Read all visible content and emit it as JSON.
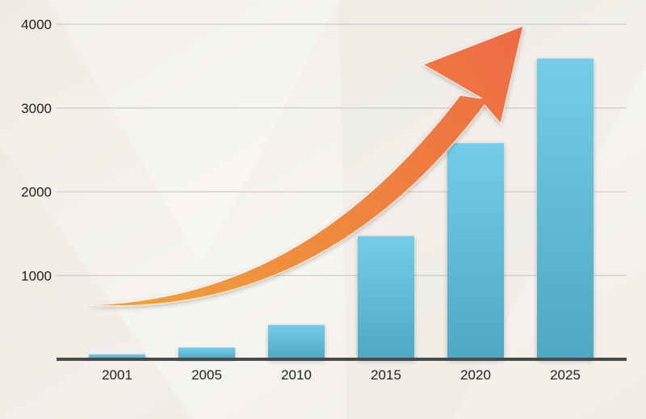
{
  "chart_data": {
    "type": "bar",
    "title": "",
    "xlabel": "",
    "ylabel": "",
    "categories": [
      "2001",
      "2005",
      "2010",
      "2015",
      "2020",
      "2025"
    ],
    "values": [
      60,
      140,
      410,
      1470,
      2580,
      3590
    ],
    "ylim": [
      0,
      4000
    ],
    "yticks": [
      1000,
      2000,
      3000,
      4000
    ],
    "grid": true,
    "legend": "none",
    "annotation": "orange-upward-trend-arrow"
  },
  "colors": {
    "bar_top": "#74cde6",
    "bar_bottom": "#4fa8c2",
    "arrow_start": "#f0a437",
    "arrow_end": "#ee6a45",
    "grid": "#d4d2cd",
    "axis": "#4a4a4a",
    "background": "#f3f0ea",
    "frame": "#474747"
  }
}
